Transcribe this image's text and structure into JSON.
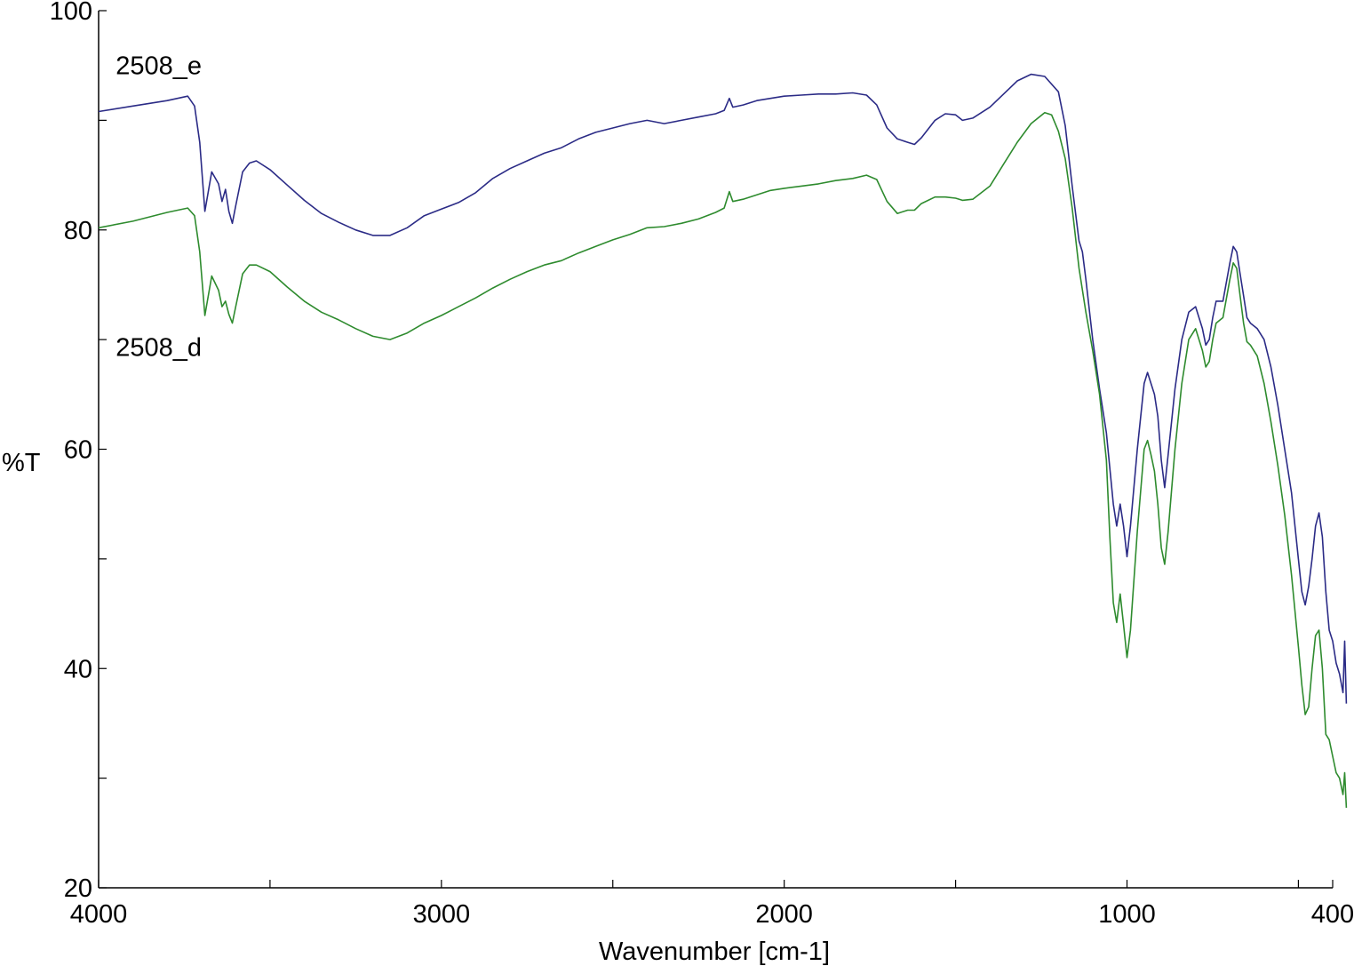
{
  "chart_data": {
    "type": "line",
    "xlabel": "Wavenumber [cm-1]",
    "ylabel": "%T",
    "xlim": [
      4000,
      400
    ],
    "ylim": [
      20,
      100
    ],
    "x_reversed": true,
    "x_ticks": [
      4000,
      3000,
      2000,
      1000,
      400
    ],
    "y_ticks": [
      20,
      40,
      60,
      80,
      100
    ],
    "grid": false,
    "series": [
      {
        "name": "2508_e",
        "color": "#2b2b86",
        "points": [
          [
            4000,
            90.8
          ],
          [
            3900,
            91.3
          ],
          [
            3800,
            91.8
          ],
          [
            3740,
            92.2
          ],
          [
            3720,
            91.3
          ],
          [
            3705,
            88.0
          ],
          [
            3690,
            81.7
          ],
          [
            3670,
            85.3
          ],
          [
            3650,
            84.2
          ],
          [
            3640,
            82.6
          ],
          [
            3630,
            83.7
          ],
          [
            3620,
            81.7
          ],
          [
            3610,
            80.6
          ],
          [
            3600,
            82.2
          ],
          [
            3580,
            85.3
          ],
          [
            3560,
            86.1
          ],
          [
            3540,
            86.3
          ],
          [
            3500,
            85.5
          ],
          [
            3450,
            84.1
          ],
          [
            3400,
            82.7
          ],
          [
            3350,
            81.5
          ],
          [
            3300,
            80.7
          ],
          [
            3250,
            80.0
          ],
          [
            3200,
            79.5
          ],
          [
            3150,
            79.5
          ],
          [
            3100,
            80.2
          ],
          [
            3050,
            81.3
          ],
          [
            3000,
            81.9
          ],
          [
            2950,
            82.5
          ],
          [
            2900,
            83.4
          ],
          [
            2850,
            84.7
          ],
          [
            2800,
            85.6
          ],
          [
            2750,
            86.3
          ],
          [
            2700,
            87.0
          ],
          [
            2650,
            87.5
          ],
          [
            2600,
            88.3
          ],
          [
            2550,
            88.9
          ],
          [
            2500,
            89.3
          ],
          [
            2450,
            89.7
          ],
          [
            2400,
            90.0
          ],
          [
            2350,
            89.7
          ],
          [
            2300,
            90.0
          ],
          [
            2250,
            90.3
          ],
          [
            2200,
            90.6
          ],
          [
            2175,
            90.9
          ],
          [
            2160,
            92.0
          ],
          [
            2150,
            91.2
          ],
          [
            2120,
            91.4
          ],
          [
            2080,
            91.8
          ],
          [
            2040,
            92.0
          ],
          [
            2000,
            92.2
          ],
          [
            1950,
            92.3
          ],
          [
            1900,
            92.4
          ],
          [
            1850,
            92.4
          ],
          [
            1800,
            92.5
          ],
          [
            1760,
            92.3
          ],
          [
            1730,
            91.4
          ],
          [
            1700,
            89.3
          ],
          [
            1670,
            88.3
          ],
          [
            1640,
            88.0
          ],
          [
            1620,
            87.8
          ],
          [
            1600,
            88.4
          ],
          [
            1560,
            90.0
          ],
          [
            1530,
            90.6
          ],
          [
            1500,
            90.5
          ],
          [
            1480,
            90.0
          ],
          [
            1450,
            90.2
          ],
          [
            1400,
            91.2
          ],
          [
            1360,
            92.4
          ],
          [
            1320,
            93.6
          ],
          [
            1280,
            94.2
          ],
          [
            1240,
            94.0
          ],
          [
            1200,
            92.6
          ],
          [
            1180,
            89.5
          ],
          [
            1160,
            84.0
          ],
          [
            1140,
            79.0
          ],
          [
            1130,
            78.0
          ],
          [
            1120,
            75.5
          ],
          [
            1100,
            70.0
          ],
          [
            1080,
            65.5
          ],
          [
            1060,
            61.5
          ],
          [
            1040,
            55.0
          ],
          [
            1030,
            53.0
          ],
          [
            1020,
            55.0
          ],
          [
            1010,
            53.0
          ],
          [
            1000,
            50.2
          ],
          [
            990,
            53.0
          ],
          [
            970,
            60.0
          ],
          [
            950,
            66.0
          ],
          [
            940,
            67.0
          ],
          [
            930,
            66.0
          ],
          [
            920,
            65.0
          ],
          [
            910,
            63.0
          ],
          [
            900,
            59.0
          ],
          [
            890,
            56.5
          ],
          [
            880,
            59.5
          ],
          [
            860,
            65.5
          ],
          [
            840,
            70.0
          ],
          [
            820,
            72.5
          ],
          [
            800,
            73.0
          ],
          [
            780,
            71.0
          ],
          [
            770,
            69.5
          ],
          [
            760,
            70.0
          ],
          [
            750,
            72.0
          ],
          [
            740,
            73.5
          ],
          [
            720,
            73.5
          ],
          [
            700,
            77.0
          ],
          [
            690,
            78.5
          ],
          [
            680,
            78.0
          ],
          [
            670,
            76.0
          ],
          [
            660,
            74.0
          ],
          [
            650,
            72.0
          ],
          [
            640,
            71.5
          ],
          [
            620,
            71.0
          ],
          [
            600,
            70.0
          ],
          [
            580,
            67.5
          ],
          [
            560,
            64.0
          ],
          [
            540,
            60.0
          ],
          [
            520,
            56.0
          ],
          [
            500,
            50.0
          ],
          [
            490,
            47.0
          ],
          [
            480,
            45.8
          ],
          [
            470,
            47.5
          ],
          [
            460,
            50.0
          ],
          [
            450,
            53.0
          ],
          [
            440,
            54.2
          ],
          [
            430,
            52.0
          ],
          [
            420,
            47.0
          ],
          [
            410,
            43.5
          ],
          [
            400,
            42.5
          ],
          [
            390,
            40.5
          ],
          [
            380,
            39.5
          ],
          [
            370,
            37.8
          ],
          [
            365,
            42.5
          ],
          [
            360,
            36.8
          ]
        ]
      },
      {
        "name": "2508_d",
        "color": "#2e8b2e",
        "points": [
          [
            4000,
            80.2
          ],
          [
            3900,
            80.8
          ],
          [
            3800,
            81.6
          ],
          [
            3740,
            82.0
          ],
          [
            3720,
            81.3
          ],
          [
            3705,
            78.0
          ],
          [
            3690,
            72.2
          ],
          [
            3670,
            75.8
          ],
          [
            3650,
            74.5
          ],
          [
            3640,
            73.0
          ],
          [
            3630,
            73.5
          ],
          [
            3620,
            72.3
          ],
          [
            3610,
            71.5
          ],
          [
            3600,
            73.0
          ],
          [
            3580,
            76.0
          ],
          [
            3560,
            76.8
          ],
          [
            3540,
            76.8
          ],
          [
            3500,
            76.2
          ],
          [
            3450,
            74.8
          ],
          [
            3400,
            73.5
          ],
          [
            3350,
            72.5
          ],
          [
            3300,
            71.8
          ],
          [
            3250,
            71.0
          ],
          [
            3200,
            70.3
          ],
          [
            3150,
            70.0
          ],
          [
            3100,
            70.6
          ],
          [
            3050,
            71.5
          ],
          [
            3000,
            72.2
          ],
          [
            2950,
            73.0
          ],
          [
            2900,
            73.8
          ],
          [
            2850,
            74.7
          ],
          [
            2800,
            75.5
          ],
          [
            2750,
            76.2
          ],
          [
            2700,
            76.8
          ],
          [
            2650,
            77.2
          ],
          [
            2600,
            77.9
          ],
          [
            2550,
            78.5
          ],
          [
            2500,
            79.1
          ],
          [
            2450,
            79.6
          ],
          [
            2400,
            80.2
          ],
          [
            2350,
            80.3
          ],
          [
            2300,
            80.6
          ],
          [
            2250,
            81.0
          ],
          [
            2200,
            81.6
          ],
          [
            2175,
            82.0
          ],
          [
            2160,
            83.5
          ],
          [
            2150,
            82.6
          ],
          [
            2120,
            82.8
          ],
          [
            2080,
            83.2
          ],
          [
            2040,
            83.6
          ],
          [
            2000,
            83.8
          ],
          [
            1950,
            84.0
          ],
          [
            1900,
            84.2
          ],
          [
            1850,
            84.5
          ],
          [
            1800,
            84.7
          ],
          [
            1760,
            85.0
          ],
          [
            1730,
            84.6
          ],
          [
            1700,
            82.6
          ],
          [
            1670,
            81.5
          ],
          [
            1640,
            81.8
          ],
          [
            1620,
            81.8
          ],
          [
            1600,
            82.4
          ],
          [
            1560,
            83.0
          ],
          [
            1530,
            83.0
          ],
          [
            1500,
            82.9
          ],
          [
            1480,
            82.7
          ],
          [
            1450,
            82.8
          ],
          [
            1400,
            84.0
          ],
          [
            1360,
            86.0
          ],
          [
            1320,
            88.0
          ],
          [
            1280,
            89.7
          ],
          [
            1240,
            90.7
          ],
          [
            1220,
            90.5
          ],
          [
            1200,
            89.0
          ],
          [
            1180,
            86.5
          ],
          [
            1160,
            82.0
          ],
          [
            1140,
            76.5
          ],
          [
            1120,
            72.5
          ],
          [
            1100,
            69.0
          ],
          [
            1080,
            65.0
          ],
          [
            1060,
            59.0
          ],
          [
            1050,
            52.0
          ],
          [
            1040,
            46.0
          ],
          [
            1030,
            44.2
          ],
          [
            1020,
            46.8
          ],
          [
            1010,
            44.0
          ],
          [
            1000,
            41.0
          ],
          [
            990,
            43.5
          ],
          [
            970,
            52.5
          ],
          [
            950,
            60.0
          ],
          [
            940,
            60.8
          ],
          [
            930,
            59.5
          ],
          [
            920,
            58.0
          ],
          [
            910,
            55.0
          ],
          [
            900,
            51.0
          ],
          [
            890,
            49.5
          ],
          [
            880,
            52.5
          ],
          [
            860,
            60.0
          ],
          [
            840,
            66.0
          ],
          [
            820,
            70.0
          ],
          [
            800,
            71.0
          ],
          [
            780,
            69.0
          ],
          [
            770,
            67.5
          ],
          [
            760,
            68.0
          ],
          [
            750,
            70.0
          ],
          [
            740,
            71.5
          ],
          [
            720,
            72.0
          ],
          [
            700,
            75.5
          ],
          [
            690,
            77.0
          ],
          [
            680,
            76.5
          ],
          [
            670,
            74.0
          ],
          [
            660,
            71.5
          ],
          [
            650,
            69.8
          ],
          [
            640,
            69.5
          ],
          [
            620,
            68.5
          ],
          [
            600,
            66.0
          ],
          [
            580,
            62.5
          ],
          [
            560,
            58.5
          ],
          [
            540,
            54.0
          ],
          [
            520,
            48.5
          ],
          [
            500,
            42.0
          ],
          [
            490,
            38.5
          ],
          [
            480,
            35.8
          ],
          [
            470,
            36.5
          ],
          [
            460,
            40.0
          ],
          [
            450,
            43.0
          ],
          [
            440,
            43.5
          ],
          [
            430,
            40.0
          ],
          [
            420,
            34.0
          ],
          [
            410,
            33.5
          ],
          [
            400,
            32.0
          ],
          [
            390,
            30.5
          ],
          [
            380,
            30.0
          ],
          [
            370,
            28.5
          ],
          [
            365,
            30.5
          ],
          [
            360,
            27.3
          ]
        ]
      }
    ],
    "series_label_positions": [
      {
        "name": "2508_e",
        "x": 3950,
        "y": 94.2
      },
      {
        "name": "2508_d",
        "x": 3950,
        "y": 68.5
      }
    ]
  }
}
